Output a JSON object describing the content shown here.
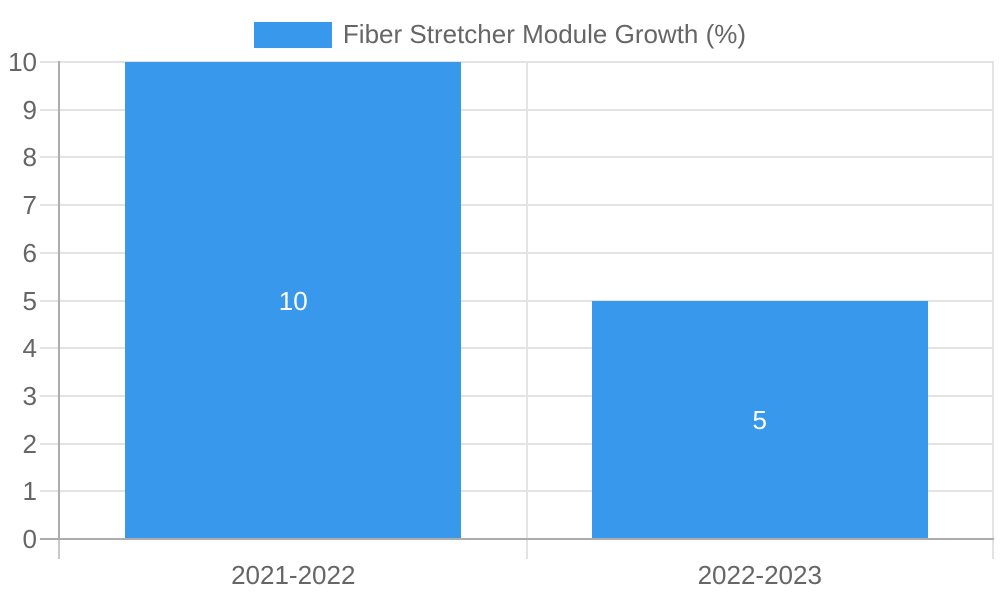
{
  "chart_data": {
    "type": "bar",
    "title": "",
    "categories": [
      "2021-2022",
      "2022-2023"
    ],
    "series": [
      {
        "name": "Fiber Stretcher Module Growth (%)",
        "values": [
          10,
          5
        ]
      }
    ],
    "data_labels": [
      "10",
      "5"
    ],
    "yticks": [
      0,
      1,
      2,
      3,
      4,
      5,
      6,
      7,
      8,
      9,
      10
    ],
    "ylim": [
      0,
      10
    ],
    "xlabel": "",
    "ylabel": "",
    "grid": true,
    "legend_position": "top",
    "colors": {
      "bar": "#3899EC",
      "grid_light": "#E3E3E3",
      "axis_dark": "#ADADAD",
      "tick_below_axis": "#C9C9C9",
      "text": "#666666",
      "value_label": "#FFFFFF",
      "background": "#FFFFFF"
    }
  }
}
